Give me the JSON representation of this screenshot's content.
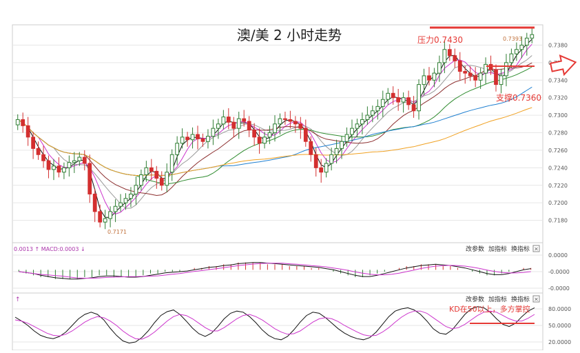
{
  "title": "澳/美 2 小时走势",
  "colors": {
    "up": "#2e7d32",
    "down": "#d32f2f",
    "ma5": "#111111",
    "ma10": "#cc33cc",
    "ma20": "#999999",
    "ma60": "#8b2d2d",
    "ma120": "#2e8b2e",
    "ma240": "#1e7fd0",
    "ma500": "#f0a020",
    "annotation": "#e53935",
    "grid": "#e6e6e6",
    "axis_text": "#555555",
    "arrow": "#e53935"
  },
  "annotations": {
    "resistance": "压力0.7430",
    "support": "支撑0.7360",
    "kd_note": "KD在50以上，多方掌控",
    "high_label": "0.7393",
    "low_label": "0.7171"
  },
  "panels": {
    "macd_header": "0.0013 ↑ MACD:0.0003 ↓",
    "kd_header": "↑",
    "controls": [
      "改参数",
      "加指标",
      "换指标"
    ],
    "close_glyph": "×"
  },
  "chart_data": [
    {
      "type": "candlestick",
      "title": "澳/美 2 小时走势",
      "ylim": [
        0.716,
        0.74
      ],
      "yticks": [
        "0.7380",
        "0.7360",
        "0.7340",
        "0.7320",
        "0.7300",
        "0.7280",
        "0.7260",
        "0.7240",
        "0.7220",
        "0.7200",
        "0.7180"
      ],
      "resistance_level": 0.743,
      "support_level": 0.736,
      "closes": [
        0.7295,
        0.7288,
        0.7275,
        0.7262,
        0.7255,
        0.7248,
        0.7238,
        0.7242,
        0.7235,
        0.724,
        0.7246,
        0.7248,
        0.7252,
        0.7245,
        0.721,
        0.719,
        0.7178,
        0.7182,
        0.719,
        0.7196,
        0.72,
        0.7205,
        0.721,
        0.722,
        0.7232,
        0.724,
        0.7236,
        0.7228,
        0.722,
        0.7235,
        0.7255,
        0.7268,
        0.7275,
        0.7272,
        0.7278,
        0.7273,
        0.727,
        0.7276,
        0.7285,
        0.729,
        0.7298,
        0.7292,
        0.7285,
        0.7296,
        0.7293,
        0.7283,
        0.7275,
        0.7268,
        0.7275,
        0.728,
        0.729,
        0.7296,
        0.7295,
        0.7293,
        0.729,
        0.7285,
        0.727,
        0.7255,
        0.724,
        0.7235,
        0.7245,
        0.7255,
        0.7262,
        0.727,
        0.7278,
        0.7285,
        0.729,
        0.7295,
        0.73,
        0.7305,
        0.731,
        0.7318,
        0.7325,
        0.732,
        0.7315,
        0.732,
        0.7312,
        0.7305,
        0.7335,
        0.7345,
        0.734,
        0.7348,
        0.736,
        0.7375,
        0.7368,
        0.7362,
        0.735,
        0.7348,
        0.7345,
        0.734,
        0.7348,
        0.7358,
        0.7352,
        0.7335,
        0.7345,
        0.736,
        0.737,
        0.7375,
        0.738,
        0.7388,
        0.7392
      ]
    },
    {
      "type": "bar",
      "title": "MACD",
      "ylim": [
        -0.001,
        0.0008
      ],
      "yticks": [
        "0.0000",
        "-0.0000",
        "-0.0000"
      ],
      "values": [
        -0.0001,
        -0.0002,
        -0.0003,
        -0.0004,
        -0.0004,
        -0.0005,
        -0.0005,
        -0.0005,
        -0.0005,
        -0.0004,
        -0.0004,
        -0.0003,
        -0.0003,
        -0.0004,
        -0.0004,
        -0.0004,
        -0.0004,
        -0.0003,
        -0.0002,
        -0.0002,
        -0.0001,
        -0.0001,
        -0.0001,
        0.0,
        0.0001,
        0.0001,
        0.0002,
        0.0002,
        0.0003,
        0.0003,
        0.0004,
        0.0004,
        0.0004,
        0.0004,
        0.0003,
        0.0003,
        0.0003,
        0.0002,
        0.0002,
        0.0002,
        0.0001,
        0.0001,
        0.0,
        -0.0001,
        -0.0002,
        -0.0003,
        -0.0004,
        -0.0004,
        -0.0003,
        -0.0002,
        -0.0001,
        0.0,
        0.0001,
        0.0002,
        0.0002,
        0.0003,
        0.0003,
        0.0003,
        0.0002,
        0.0002,
        0.0001,
        0.0,
        -0.0001,
        -0.0002,
        -0.0003,
        -0.0003,
        -0.0002,
        -0.0001,
        0.0,
        0.0001,
        0.0001
      ]
    },
    {
      "type": "line",
      "title": "KD",
      "ylim": [
        15,
        100
      ],
      "yticks": [
        "80.0000",
        "50.0000",
        "20.0000"
      ],
      "series": [
        {
          "values": [
            65,
            58,
            50,
            40,
            32,
            28,
            26,
            30,
            38,
            50,
            62,
            70,
            74,
            70,
            60,
            45,
            32,
            22,
            18,
            20,
            28,
            40,
            55,
            68,
            75,
            78,
            70,
            58,
            45,
            35,
            30,
            36,
            48,
            62,
            72,
            76,
            74,
            66,
            55,
            42,
            32,
            26,
            24,
            30,
            42,
            56,
            68,
            74,
            72,
            64,
            54,
            44,
            36,
            30,
            26,
            24,
            28,
            38,
            52,
            66,
            76,
            80,
            82,
            78,
            70,
            58,
            44,
            36,
            34,
            42,
            56,
            70,
            80,
            84,
            82,
            74,
            62,
            52,
            48,
            54,
            66,
            76,
            82
          ]
        },
        {
          "values": [
            60,
            58,
            54,
            48,
            42,
            36,
            32,
            31,
            34,
            40,
            48,
            56,
            62,
            66,
            64,
            58,
            50,
            40,
            32,
            26,
            25,
            30,
            38,
            48,
            58,
            66,
            70,
            68,
            62,
            54,
            46,
            40,
            40,
            46,
            54,
            62,
            68,
            70,
            66,
            60,
            52,
            44,
            38,
            34,
            35,
            40,
            48,
            56,
            62,
            64,
            62,
            57,
            50,
            44,
            38,
            33,
            31,
            32,
            38,
            46,
            56,
            65,
            72,
            76,
            76,
            72,
            64,
            56,
            48,
            44,
            46,
            52,
            60,
            68,
            74,
            76,
            74,
            68,
            62,
            58,
            58,
            63,
            70
          ]
        }
      ]
    }
  ]
}
